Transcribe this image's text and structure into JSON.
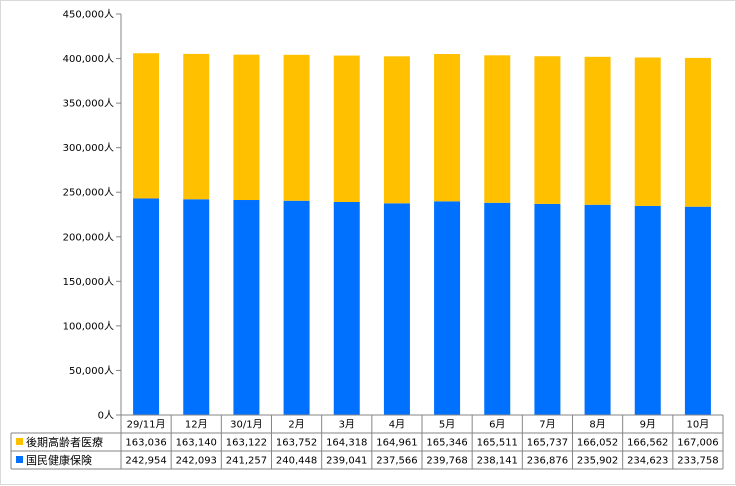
{
  "chart_data": {
    "type": "bar",
    "stacked": true,
    "categories": [
      "29/11月",
      "12月",
      "30/1月",
      "2月",
      "3月",
      "4月",
      "5月",
      "6月",
      "7月",
      "8月",
      "9月",
      "10月"
    ],
    "series": [
      {
        "name": "国民健康保険",
        "color": "#0070ff",
        "values": [
          242954,
          242093,
          241257,
          240448,
          239041,
          237566,
          239768,
          238141,
          236876,
          235902,
          234623,
          233758
        ]
      },
      {
        "name": "後期高齢者医療",
        "color": "#ffc000",
        "values": [
          163036,
          163140,
          163122,
          163752,
          164318,
          164961,
          165346,
          165511,
          165737,
          166052,
          166562,
          167006
        ]
      }
    ],
    "y_ticks": [
      "0人",
      "50,000人",
      "100,000人",
      "150,000人",
      "200,000人",
      "250,000人",
      "300,000人",
      "350,000人",
      "400,000人",
      "450,000人"
    ],
    "ylim": [
      0,
      450000
    ],
    "grid": false,
    "legend_placement": "data-table",
    "table_rows": [
      {
        "series_index": 1,
        "label": "後期高齢者医療",
        "cells": [
          "163,036",
          "163,140",
          "163,122",
          "163,752",
          "164,318",
          "164,961",
          "165,346",
          "165,511",
          "165,737",
          "166,052",
          "166,562",
          "167,006"
        ]
      },
      {
        "series_index": 0,
        "label": "国民健康保険",
        "cells": [
          "242,954",
          "242,093",
          "241,257",
          "240,448",
          "239,041",
          "237,566",
          "239,768",
          "238,141",
          "236,876",
          "235,902",
          "234,623",
          "233,758"
        ]
      }
    ]
  }
}
